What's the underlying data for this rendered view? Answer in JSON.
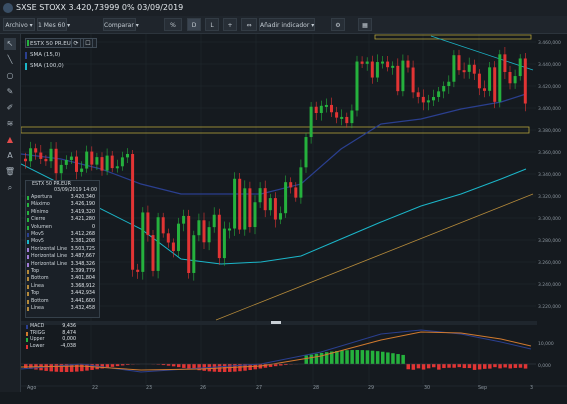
{
  "title": "SXSE STOXX 3.420,73999 0% 03/09/2019",
  "toolbar": {
    "archivo": "Archivo ▾",
    "period": "1 Mes 60 ▾",
    "comparar": "Comparar ▾",
    "percent": "%",
    "d": "D",
    "l": "L",
    "plus": "+",
    "arrows": "⇔",
    "indicator": "Añadir indicador ▾",
    "gear": "⚙",
    "cal": "▦"
  },
  "instrument": {
    "label": "ESTX 50 PR.EUR"
  },
  "sma_legend": [
    {
      "label": "SMA (15,0)",
      "color": "#2a3f8f"
    },
    {
      "label": "SMA (100,0)",
      "color": "#1bb6c9"
    }
  ],
  "data_panel": {
    "header": "ESTX 50 PR.EUR",
    "date": "03/09/2019 14:00",
    "rows": [
      {
        "key": "Apertura",
        "value": "3.420,340",
        "color": "#25b13d"
      },
      {
        "key": "Máximo",
        "value": "3.426,190",
        "color": "#25b13d"
      },
      {
        "key": "Mínimo",
        "value": "3.419,320",
        "color": "#25b13d"
      },
      {
        "key": "Cierre",
        "value": "3.421,280",
        "color": "#25b13d"
      },
      {
        "key": "Volumen",
        "value": "0",
        "color": "#25b13d"
      },
      {
        "key": "Mov5",
        "value": "3.412,268",
        "color": "#2a3f8f"
      },
      {
        "key": "Mov5",
        "value": "3.381,208",
        "color": "#1bb6c9"
      },
      {
        "key": "Horizontal Line",
        "value": "3.503,725",
        "color": "#9f7bd6"
      },
      {
        "key": "Horizontal Line",
        "value": "3.487,667",
        "color": "#9f7bd6"
      },
      {
        "key": "Horizontal Line",
        "value": "3.348,326",
        "color": "#9f7bd6"
      },
      {
        "key": "Top",
        "value": "3.399,779",
        "color": "#b58a3a"
      },
      {
        "key": "Bottom",
        "value": "3.401,804",
        "color": "#b58a3a"
      },
      {
        "key": "Línea",
        "value": "3.368,912",
        "color": "#b58a3a"
      },
      {
        "key": "Top",
        "value": "3.442,934",
        "color": "#b58a3a"
      },
      {
        "key": "Bottom",
        "value": "3.441,600",
        "color": "#b58a3a"
      },
      {
        "key": "Línea",
        "value": "3.432,458",
        "color": "#b58a3a"
      }
    ]
  },
  "macd_legend": [
    {
      "key": "MACD",
      "value": "9,436",
      "color": "#2a3f8f"
    },
    {
      "key": "TRIGG",
      "value": "8,474",
      "color": "#d17a2e"
    },
    {
      "key": "Upper",
      "value": "0,000",
      "color": "#25b13d"
    },
    {
      "key": "Lower",
      "value": "-4,038",
      "color": "#e23434"
    }
  ],
  "x_axis": [
    "Ago",
    "22",
    "23",
    "26",
    "27",
    "28",
    "29",
    "30",
    "Sep",
    "3"
  ],
  "y_axis": [
    "3.460,000",
    "3.440,000",
    "3.420,000",
    "3.400,000",
    "3.380,000",
    "3.360,000",
    "3.340,000",
    "3.320,000",
    "3.300,000",
    "3.280,000",
    "3.260,000",
    "3.240,000",
    "3.220,000"
  ],
  "macd_axis": [
    "10,000",
    "0,000"
  ],
  "colors": {
    "up": "#25b13d",
    "down": "#e23434",
    "sma15": "#2a3f8f",
    "sma100": "#1bb6c9",
    "trend": "#b58a3a"
  }
}
